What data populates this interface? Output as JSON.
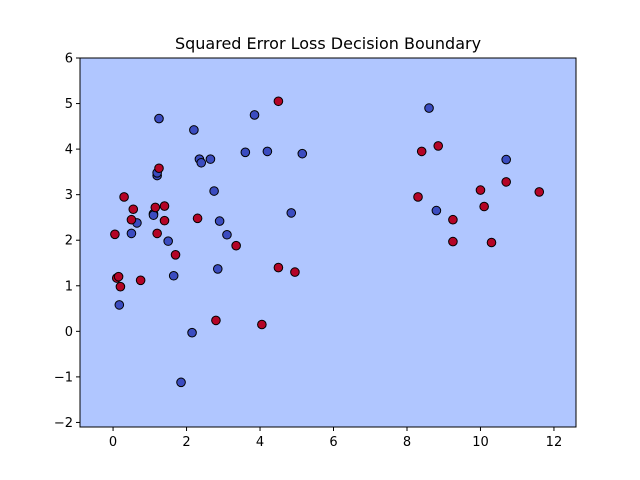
{
  "chart_data": {
    "type": "scatter",
    "title": "Squared Error Loss Decision Boundary",
    "xlabel": "",
    "ylabel": "",
    "xlim": [
      -0.9,
      12.6
    ],
    "ylim": [
      -2.1,
      6.0
    ],
    "xticks": [
      0,
      2,
      4,
      6,
      8,
      10,
      12
    ],
    "yticks": [
      -2,
      -1,
      0,
      1,
      2,
      3,
      4,
      5,
      6
    ],
    "grid": false,
    "legend": "none",
    "background_region": {
      "color": "#b0c6ff"
    },
    "series": [
      {
        "color": "#3b4cc0",
        "points": [
          [
            1.25,
            4.67
          ],
          [
            2.2,
            4.42
          ],
          [
            3.85,
            4.75
          ],
          [
            4.2,
            3.95
          ],
          [
            3.6,
            3.93
          ],
          [
            2.65,
            3.78
          ],
          [
            2.35,
            3.78
          ],
          [
            2.4,
            3.7
          ],
          [
            5.15,
            3.9
          ],
          [
            1.2,
            3.42
          ],
          [
            1.2,
            3.48
          ],
          [
            2.75,
            3.08
          ],
          [
            0.65,
            2.38
          ],
          [
            0.5,
            2.15
          ],
          [
            1.1,
            2.58
          ],
          [
            1.1,
            2.55
          ],
          [
            1.5,
            1.98
          ],
          [
            2.9,
            2.42
          ],
          [
            3.1,
            2.12
          ],
          [
            4.85,
            2.6
          ],
          [
            1.65,
            1.22
          ],
          [
            2.85,
            1.37
          ],
          [
            0.17,
            0.58
          ],
          [
            2.15,
            -0.03
          ],
          [
            1.85,
            -1.12
          ],
          [
            8.6,
            4.9
          ],
          [
            10.7,
            3.77
          ],
          [
            8.8,
            2.65
          ]
        ]
      },
      {
        "color": "#b40426",
        "points": [
          [
            4.5,
            5.05
          ],
          [
            1.25,
            3.58
          ],
          [
            0.3,
            2.95
          ],
          [
            0.55,
            2.68
          ],
          [
            1.15,
            2.72
          ],
          [
            1.4,
            2.75
          ],
          [
            0.5,
            2.45
          ],
          [
            1.4,
            2.43
          ],
          [
            2.3,
            2.48
          ],
          [
            0.05,
            2.13
          ],
          [
            1.2,
            2.15
          ],
          [
            3.35,
            1.88
          ],
          [
            1.7,
            1.68
          ],
          [
            4.5,
            1.4
          ],
          [
            4.95,
            1.3
          ],
          [
            0.1,
            1.17
          ],
          [
            0.15,
            1.2
          ],
          [
            0.75,
            1.12
          ],
          [
            0.2,
            0.98
          ],
          [
            2.8,
            0.24
          ],
          [
            4.05,
            0.15
          ],
          [
            8.4,
            3.95
          ],
          [
            8.85,
            4.07
          ],
          [
            8.3,
            2.95
          ],
          [
            10.0,
            3.1
          ],
          [
            10.1,
            2.74
          ],
          [
            10.7,
            3.28
          ],
          [
            11.6,
            3.06
          ],
          [
            9.25,
            2.45
          ],
          [
            9.25,
            1.97
          ],
          [
            10.3,
            1.95
          ]
        ]
      }
    ]
  }
}
